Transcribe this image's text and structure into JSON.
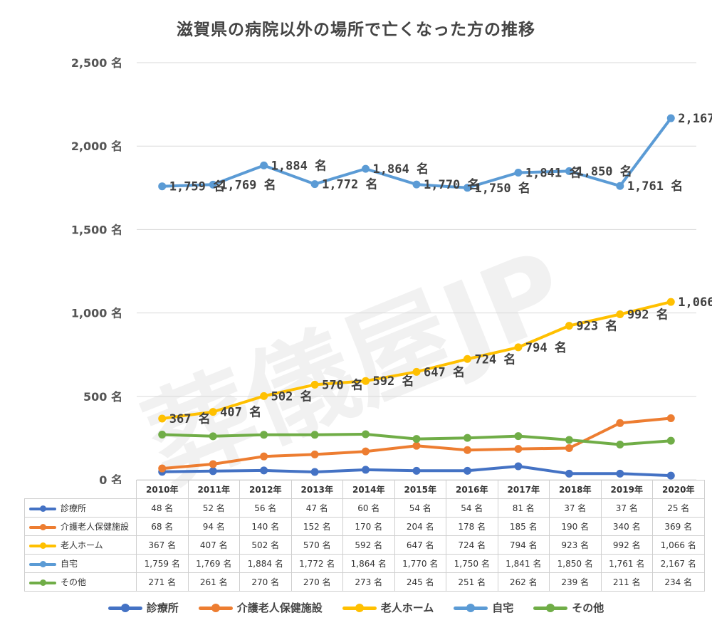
{
  "watermark": "葬儀屋JP",
  "chart_data": {
    "type": "line",
    "title": "滋賀県の病院以外の場所で亡くなった方の推移",
    "categories": [
      "2010年",
      "2011年",
      "2012年",
      "2013年",
      "2014年",
      "2015年",
      "2016年",
      "2017年",
      "2018年",
      "2019年",
      "2020年"
    ],
    "ylim": [
      0,
      2500
    ],
    "yticks": [
      0,
      500,
      1000,
      1500,
      2000,
      2500
    ],
    "ytick_labels": [
      "0 名",
      "500 名",
      "1,000 名",
      "1,500 名",
      "2,000 名",
      "2,500 名"
    ],
    "grid": true,
    "legend_position": "bottom",
    "show_labels_for": [
      "老人ホーム",
      "自宅"
    ],
    "series": [
      {
        "name": "診療所",
        "color": "#4472C4",
        "values": [
          48,
          52,
          56,
          47,
          60,
          54,
          54,
          81,
          37,
          37,
          25
        ],
        "labels": [
          "48 名",
          "52 名",
          "56 名",
          "47 名",
          "60 名",
          "54 名",
          "54 名",
          "81 名",
          "37 名",
          "37 名",
          "25 名"
        ]
      },
      {
        "name": "介護老人保健施設",
        "color": "#ED7D31",
        "values": [
          68,
          94,
          140,
          152,
          170,
          204,
          178,
          185,
          190,
          340,
          369
        ],
        "labels": [
          "68 名",
          "94 名",
          "140 名",
          "152 名",
          "170 名",
          "204 名",
          "178 名",
          "185 名",
          "190 名",
          "340 名",
          "369 名"
        ]
      },
      {
        "name": "老人ホーム",
        "color": "#FFC000",
        "values": [
          367,
          407,
          502,
          570,
          592,
          647,
          724,
          794,
          923,
          992,
          1066
        ],
        "labels": [
          "367 名",
          "407 名",
          "502 名",
          "570 名",
          "592 名",
          "647 名",
          "724 名",
          "794 名",
          "923 名",
          "992 名",
          "1,066 名"
        ]
      },
      {
        "name": "自宅",
        "color": "#5B9BD5",
        "values": [
          1759,
          1769,
          1884,
          1772,
          1864,
          1770,
          1750,
          1841,
          1850,
          1761,
          2167
        ],
        "labels": [
          "1,759 名",
          "1,769 名",
          "1,884 名",
          "1,772 名",
          "1,864 名",
          "1,770 名",
          "1,750 名",
          "1,841 名",
          "1,850 名",
          "1,761 名",
          "2,167 名"
        ]
      },
      {
        "name": "その他",
        "color": "#70AD47",
        "values": [
          271,
          261,
          270,
          270,
          273,
          245,
          251,
          262,
          239,
          211,
          234
        ],
        "labels": [
          "271 名",
          "261 名",
          "270 名",
          "270 名",
          "273 名",
          "245 名",
          "251 名",
          "262 名",
          "239 名",
          "211 名",
          "234 名"
        ]
      }
    ]
  }
}
